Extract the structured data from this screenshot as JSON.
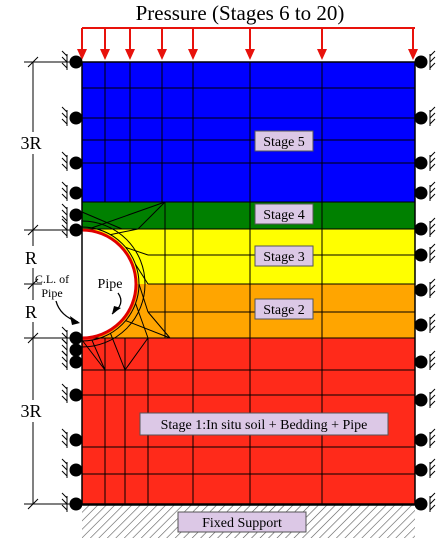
{
  "title": "Pressure (Stages 6 to 20)",
  "dimensions": {
    "top": "3R",
    "upper_mid": "R",
    "lower_mid": "R",
    "bottom": "3R"
  },
  "labels": {
    "cl_line1": "C.L. of",
    "cl_line2": "Pipe",
    "pipe": "Pipe",
    "fixed_support": "Fixed Support"
  },
  "stages": [
    {
      "label": "Stage 5",
      "color": "#0000ff"
    },
    {
      "label": "Stage 4",
      "color": "#008000"
    },
    {
      "label": "Stage 3",
      "color": "#ffff00"
    },
    {
      "label": "Stage 2",
      "color": "#ffa500"
    },
    {
      "label": "Stage 1:In situ soil + Bedding + Pipe",
      "color": "#ff2a1a"
    }
  ],
  "colors": {
    "pressure_arrow": "#e8120c",
    "pipe_wall": "#e00000",
    "label_box": "#dcc8e6",
    "mesh": "#000000"
  }
}
